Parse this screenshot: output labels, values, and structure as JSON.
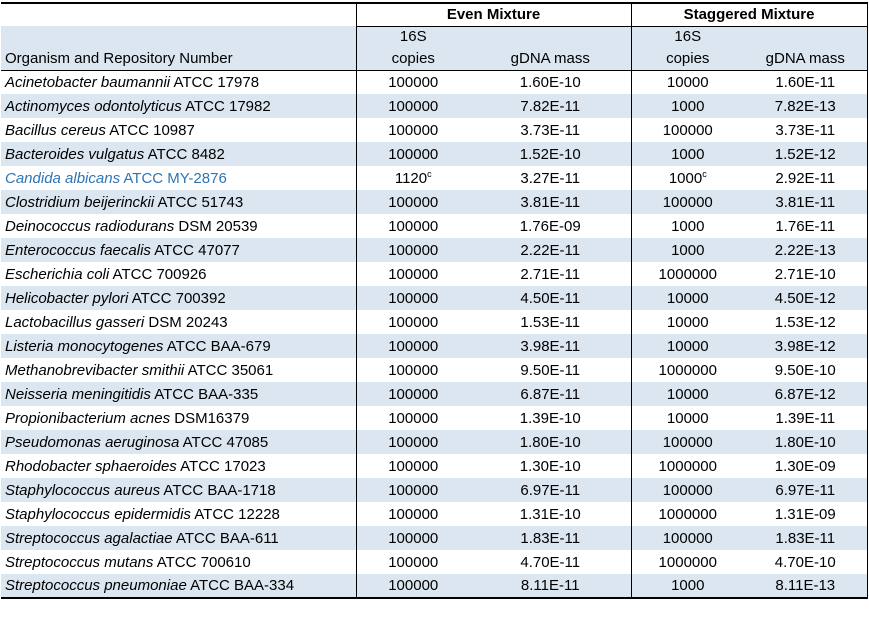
{
  "colors": {
    "stripe_blue": "#DCE6F1",
    "organism_highlight_blue": "#2E75B6",
    "border_black": "#000000"
  },
  "table": {
    "group_headers": [
      "Even Mixture",
      "Staggered Mixture"
    ],
    "organism_header": "Organism and Repository Number",
    "sub_headers": {
      "copies_top": "16S",
      "copies_bottom": "copies",
      "gdna": "gDNA mass"
    },
    "footnote_marker": "c",
    "rows": [
      {
        "organism": "Acinetobacter baumannii",
        "repository": "ATCC 17978",
        "even_copies": "100000",
        "even_gdna_mass": "1.60E-10",
        "staggered_copies": "10000",
        "staggered_gdna_mass": "1.60E-11"
      },
      {
        "organism": "Actinomyces odontolyticus",
        "repository": "ATCC 17982",
        "even_copies": "100000",
        "even_gdna_mass": "7.82E-11",
        "staggered_copies": "1000",
        "staggered_gdna_mass": "7.82E-13"
      },
      {
        "organism": "Bacillus cereus",
        "repository": "ATCC 10987",
        "even_copies": "100000",
        "even_gdna_mass": "3.73E-11",
        "staggered_copies": "100000",
        "staggered_gdna_mass": "3.73E-11"
      },
      {
        "organism": "Bacteroides vulgatus",
        "repository": "ATCC 8482",
        "even_copies": "100000",
        "even_gdna_mass": "1.52E-10",
        "staggered_copies": "1000",
        "staggered_gdna_mass": "1.52E-12"
      },
      {
        "organism": "Candida albicans",
        "repository": "ATCC MY-2876",
        "even_copies": "1120",
        "even_copies_sup": "c",
        "even_gdna_mass": "3.27E-11",
        "staggered_copies": "1000",
        "staggered_copies_sup": "c",
        "staggered_gdna_mass": "2.92E-11",
        "highlighted": true
      },
      {
        "organism": "Clostridium beijerinckii",
        "repository": "ATCC 51743",
        "even_copies": "100000",
        "even_gdna_mass": "3.81E-11",
        "staggered_copies": "100000",
        "staggered_gdna_mass": "3.81E-11"
      },
      {
        "organism": "Deinococcus radiodurans",
        "repository": "DSM 20539",
        "even_copies": "100000",
        "even_gdna_mass": "1.76E-09",
        "staggered_copies": "1000",
        "staggered_gdna_mass": "1.76E-11"
      },
      {
        "organism": "Enterococcus faecalis",
        "repository": "ATCC 47077",
        "even_copies": "100000",
        "even_gdna_mass": "2.22E-11",
        "staggered_copies": "1000",
        "staggered_gdna_mass": "2.22E-13"
      },
      {
        "organism": "Escherichia coli",
        "repository": "ATCC 700926",
        "even_copies": "100000",
        "even_gdna_mass": "2.71E-11",
        "staggered_copies": "1000000",
        "staggered_gdna_mass": "2.71E-10"
      },
      {
        "organism": "Helicobacter pylori",
        "repository": "ATCC 700392",
        "even_copies": "100000",
        "even_gdna_mass": "4.50E-11",
        "staggered_copies": "10000",
        "staggered_gdna_mass": "4.50E-12"
      },
      {
        "organism": "Lactobacillus gasseri",
        "repository": "DSM 20243",
        "even_copies": "100000",
        "even_gdna_mass": "1.53E-11",
        "staggered_copies": "10000",
        "staggered_gdna_mass": "1.53E-12"
      },
      {
        "organism": "Listeria monocytogenes",
        "repository": "ATCC BAA-679",
        "even_copies": "100000",
        "even_gdna_mass": "3.98E-11",
        "staggered_copies": "10000",
        "staggered_gdna_mass": "3.98E-12"
      },
      {
        "organism": "Methanobrevibacter smithii",
        "repository": "ATCC 35061",
        "even_copies": "100000",
        "even_gdna_mass": "9.50E-11",
        "staggered_copies": "1000000",
        "staggered_gdna_mass": "9.50E-10"
      },
      {
        "organism": "Neisseria meningitidis",
        "repository": "ATCC BAA-335",
        "even_copies": "100000",
        "even_gdna_mass": "6.87E-11",
        "staggered_copies": "10000",
        "staggered_gdna_mass": "6.87E-12"
      },
      {
        "organism": "Propionibacterium acnes",
        "repository": "DSM16379",
        "even_copies": "100000",
        "even_gdna_mass": "1.39E-10",
        "staggered_copies": "10000",
        "staggered_gdna_mass": "1.39E-11"
      },
      {
        "organism": "Pseudomonas aeruginosa",
        "repository": "ATCC 47085",
        "even_copies": "100000",
        "even_gdna_mass": "1.80E-10",
        "staggered_copies": "100000",
        "staggered_gdna_mass": "1.80E-10"
      },
      {
        "organism": "Rhodobacter sphaeroides",
        "repository": "ATCC 17023",
        "even_copies": "100000",
        "even_gdna_mass": "1.30E-10",
        "staggered_copies": "1000000",
        "staggered_gdna_mass": "1.30E-09"
      },
      {
        "organism": "Staphylococcus aureus",
        "repository": "ATCC BAA-1718",
        "even_copies": "100000",
        "even_gdna_mass": "6.97E-11",
        "staggered_copies": "100000",
        "staggered_gdna_mass": "6.97E-11"
      },
      {
        "organism": "Staphylococcus epidermidis",
        "repository": "ATCC 12228",
        "even_copies": "100000",
        "even_gdna_mass": "1.31E-10",
        "staggered_copies": "1000000",
        "staggered_gdna_mass": "1.31E-09"
      },
      {
        "organism": "Streptococcus agalactiae",
        "repository": "ATCC BAA-611",
        "even_copies": "100000",
        "even_gdna_mass": "1.83E-11",
        "staggered_copies": "100000",
        "staggered_gdna_mass": "1.83E-11"
      },
      {
        "organism": "Streptococcus mutans",
        "repository": "ATCC 700610",
        "even_copies": "100000",
        "even_gdna_mass": "4.70E-11",
        "staggered_copies": "1000000",
        "staggered_gdna_mass": "4.70E-10"
      },
      {
        "organism": "Streptococcus pneumoniae",
        "repository": "ATCC BAA-334",
        "even_copies": "100000",
        "even_gdna_mass": "8.11E-11",
        "staggered_copies": "1000",
        "staggered_gdna_mass": "8.11E-13"
      }
    ]
  }
}
